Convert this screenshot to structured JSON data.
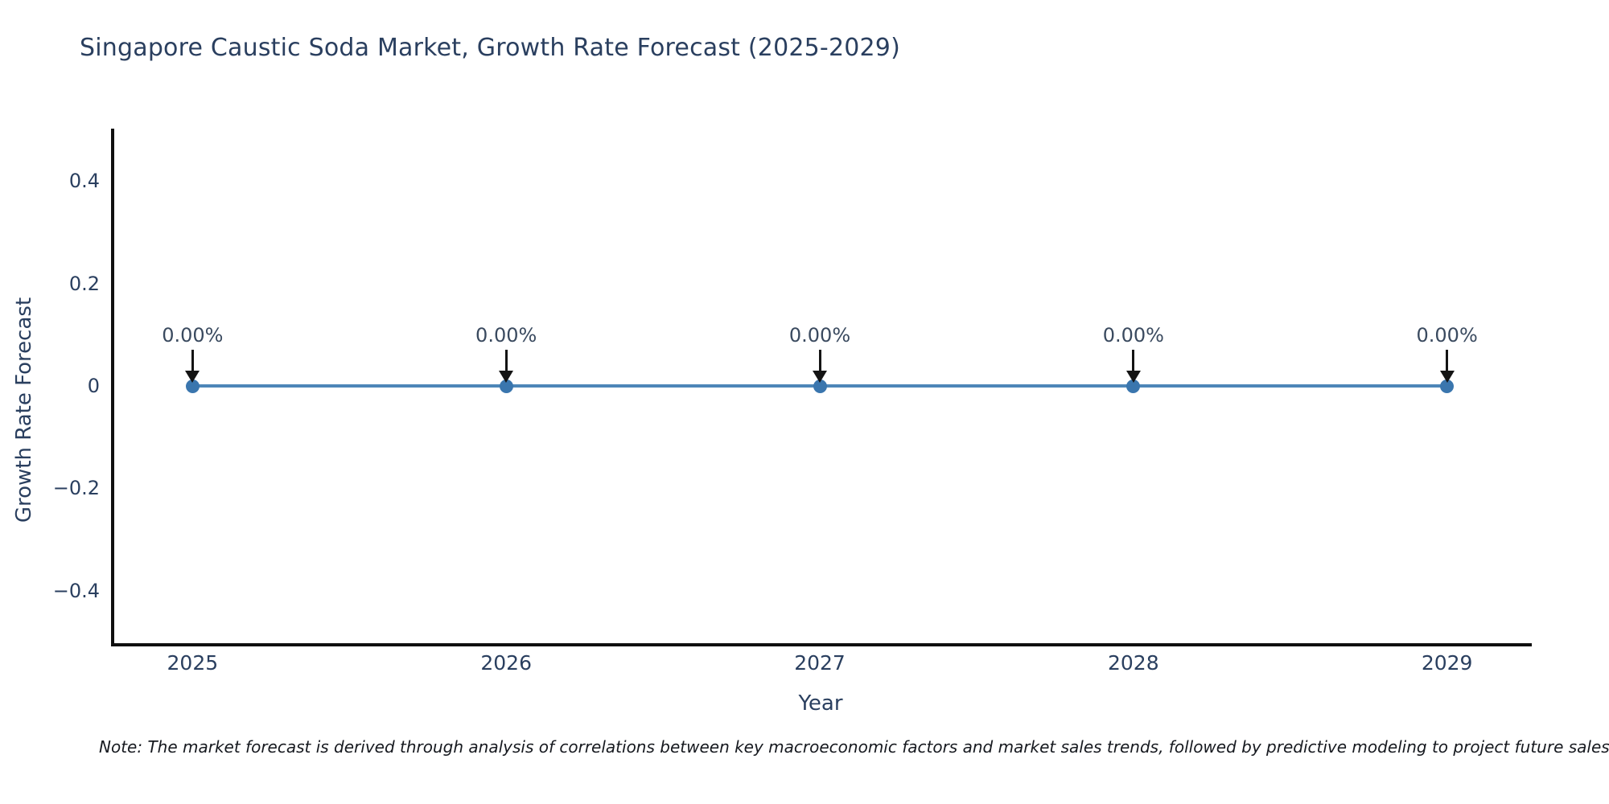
{
  "header": {
    "title": "Singapore Caustic Soda Market, Growth Rate Forecast (2025-2029)"
  },
  "footnote": {
    "text": "Note: The market forecast is derived through analysis of correlations between key macroeconomic factors and market sales trends, followed by predictive modeling to project future sales."
  },
  "chart_data": {
    "type": "line",
    "title": "Singapore Caustic Soda Market, Growth Rate Forecast (2025-2029)",
    "x": [
      2025,
      2026,
      2027,
      2028,
      2029
    ],
    "y": [
      0,
      0,
      0,
      0,
      0
    ],
    "point_labels": [
      "0.00%",
      "0.00%",
      "0.00%",
      "0.00%",
      "0.00%"
    ],
    "xlabel": "Year",
    "ylabel": "Growth Rate Forecast",
    "xlim": [
      2024.74,
      2029.26
    ],
    "ylim": [
      -0.502,
      0.502
    ],
    "xticks": {
      "values": [
        2025,
        2026,
        2027,
        2028,
        2029
      ],
      "labels": [
        "2025",
        "2026",
        "2027",
        "2028",
        "2029"
      ]
    },
    "yticks": {
      "values": [
        0.4,
        0.2,
        0,
        -0.2,
        -0.4
      ],
      "labels": [
        "0.4",
        "0.2",
        "0",
        "−0.2",
        "−0.4"
      ]
    },
    "grid": false,
    "legend_position": "none",
    "annotations": "value labels with down arrows above each data point",
    "colors": {
      "line": "#4d86b8",
      "marker": "#3a76ae",
      "axis": "#0f0f0f",
      "text": "#2a3f5f",
      "annotation_arrow": "#141414"
    }
  }
}
